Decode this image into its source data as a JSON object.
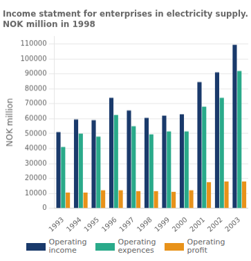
{
  "chart_data": {
    "type": "bar",
    "title": "Income statment for enterprises in electricity supply.\nNOK million in 1998",
    "ylabel": "NOK million",
    "categories": [
      "1993",
      "1994",
      "1995",
      "1996",
      "1997",
      "1998",
      "1999",
      "2000",
      "2001",
      "2002",
      "2003"
    ],
    "series": [
      {
        "name": "Operating\nincome",
        "color": "#1a3a6b",
        "values": [
          51000,
          59500,
          59000,
          74000,
          65500,
          60500,
          62000,
          63000,
          84500,
          91000,
          109500
        ]
      },
      {
        "name": "Operating\nexpences",
        "color": "#2aaa8a",
        "values": [
          41000,
          50000,
          48000,
          62500,
          55000,
          49500,
          51500,
          51500,
          68000,
          74000,
          92000
        ]
      },
      {
        "name": "Operating\nprofit",
        "color": "#e8921a",
        "values": [
          10500,
          10500,
          12000,
          12000,
          11500,
          11500,
          11000,
          12000,
          17500,
          18000,
          18000
        ]
      }
    ],
    "ylim": [
      0,
      115000
    ],
    "yticks": [
      0,
      10000,
      20000,
      30000,
      40000,
      50000,
      60000,
      70000,
      80000,
      90000,
      100000,
      110000
    ],
    "grid": true,
    "legend": "bottom"
  }
}
